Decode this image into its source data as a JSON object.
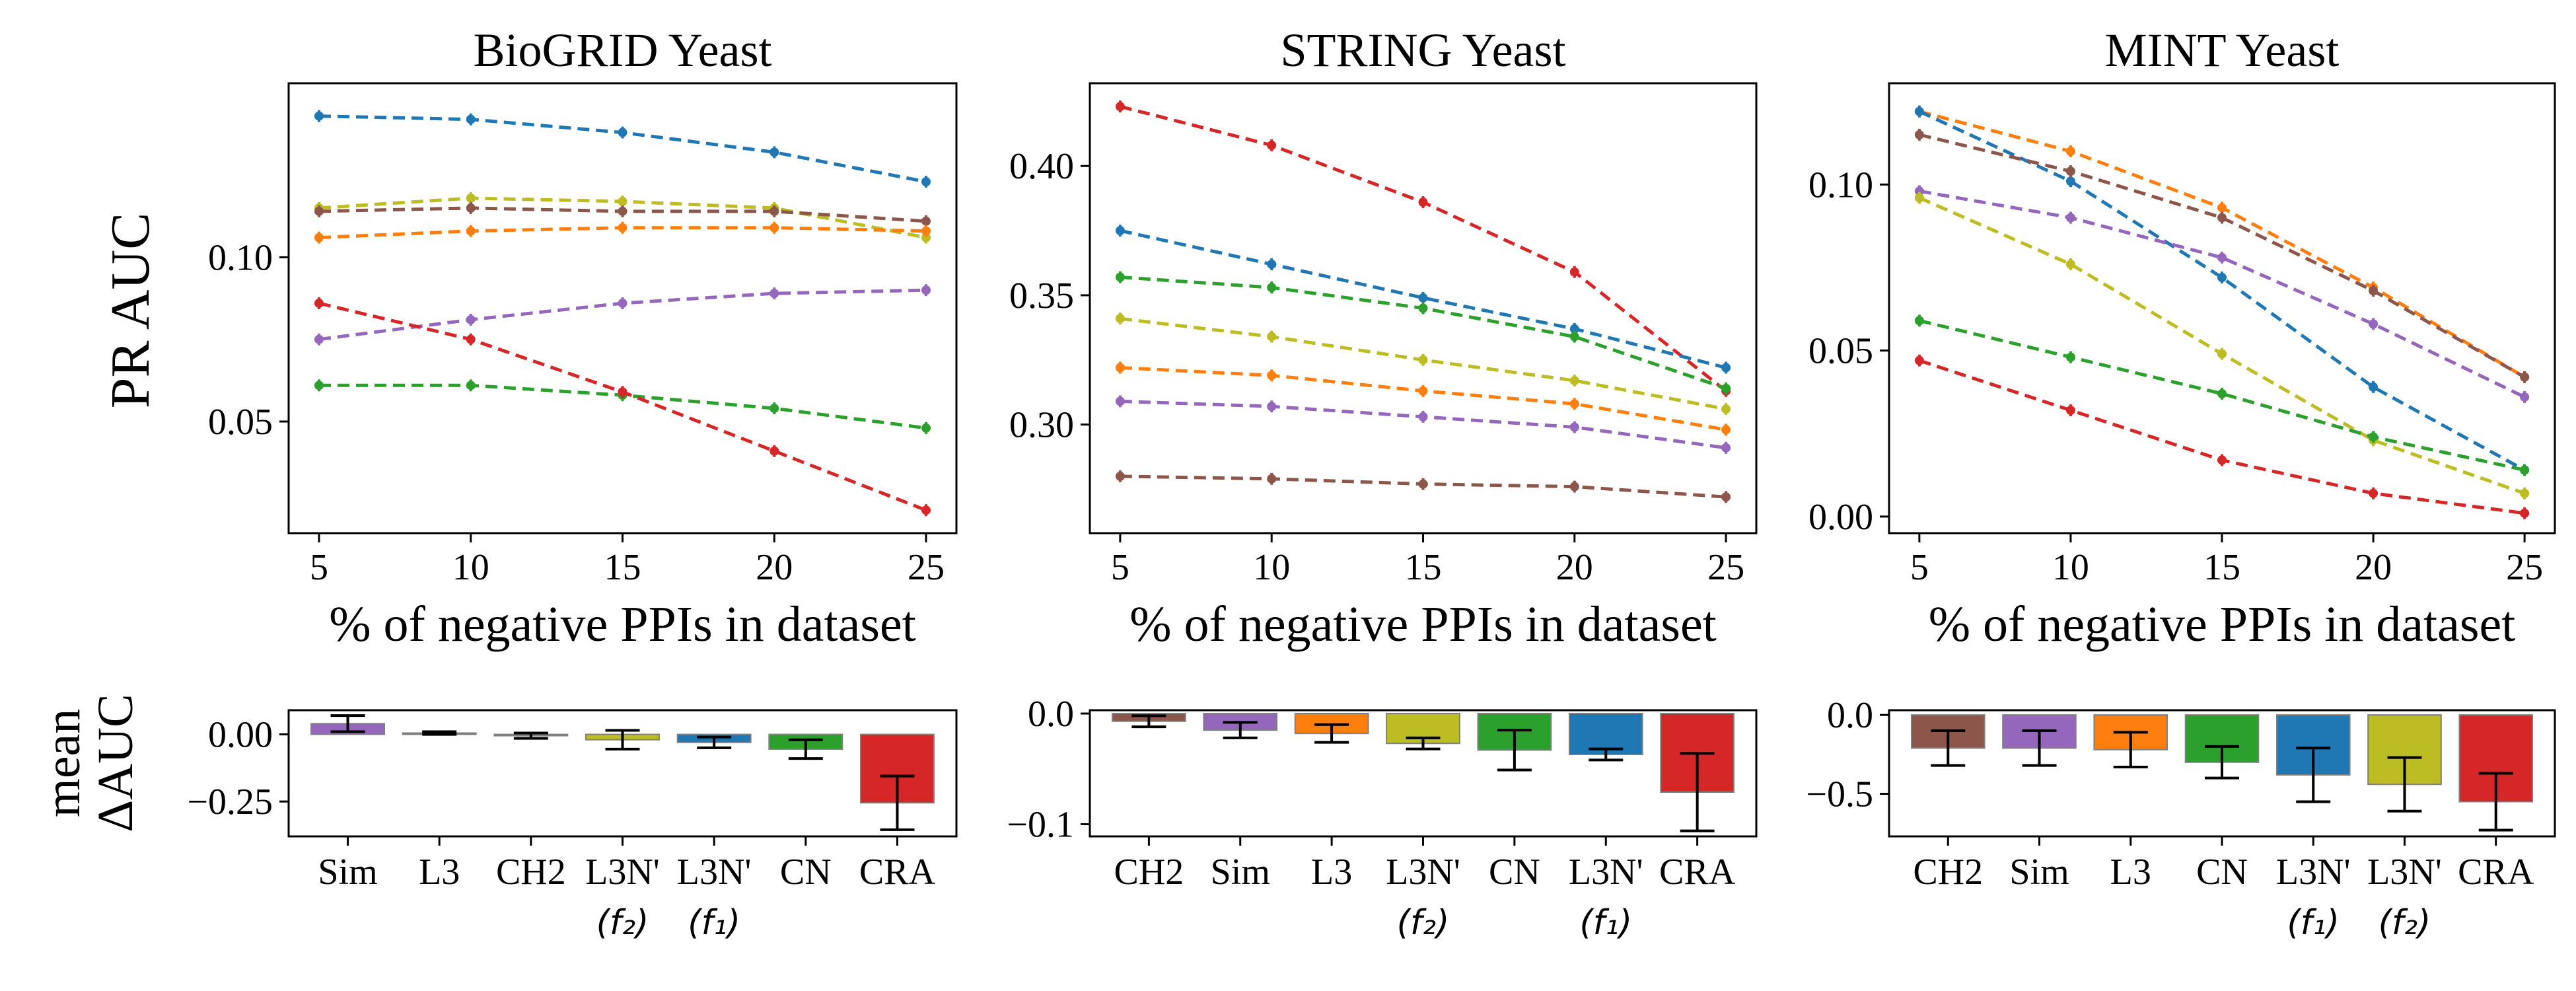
{
  "figure": {
    "ylabel_top": "PR AUC",
    "ylabel_bottom_line1": "mean",
    "ylabel_bottom_line2": "ΔAUC"
  },
  "chart_data": [
    {
      "type": "line",
      "title": "BioGRID Yeast",
      "xlabel": "% of negative PPIs in dataset",
      "ylabel": "PR AUC",
      "x": [
        5,
        10,
        15,
        20,
        25
      ],
      "xticks": [
        5,
        10,
        15,
        20,
        25
      ],
      "yticks": [
        0.05,
        0.1
      ],
      "ytick_labels": [
        "0.05",
        "0.10"
      ],
      "ylim": [
        0.016,
        0.153
      ],
      "series": [
        {
          "color": "#1f77b4",
          "values": [
            0.143,
            0.142,
            0.138,
            0.132,
            0.123
          ]
        },
        {
          "color": "#bcbd22",
          "values": [
            0.115,
            0.118,
            0.117,
            0.115,
            0.106
          ]
        },
        {
          "color": "#8c564b",
          "values": [
            0.114,
            0.115,
            0.114,
            0.114,
            0.111
          ]
        },
        {
          "color": "#ff7f0e",
          "values": [
            0.106,
            0.108,
            0.109,
            0.109,
            0.108
          ]
        },
        {
          "color": "#9467bd",
          "values": [
            0.075,
            0.081,
            0.086,
            0.089,
            0.09
          ]
        },
        {
          "color": "#2ca02c",
          "values": [
            0.061,
            0.061,
            0.058,
            0.054,
            0.048
          ]
        },
        {
          "color": "#d62728",
          "values": [
            0.086,
            0.075,
            0.059,
            0.041,
            0.023
          ]
        }
      ]
    },
    {
      "type": "line",
      "title": "STRING Yeast",
      "xlabel": "% of negative PPIs in dataset",
      "x": [
        5,
        10,
        15,
        20,
        25
      ],
      "xticks": [
        5,
        10,
        15,
        20,
        25
      ],
      "yticks": [
        0.3,
        0.35,
        0.4
      ],
      "ytick_labels": [
        "0.30",
        "0.35",
        "0.40"
      ],
      "ylim": [
        0.258,
        0.432
      ],
      "series": [
        {
          "color": "#d62728",
          "values": [
            0.423,
            0.408,
            0.386,
            0.359,
            0.313
          ]
        },
        {
          "color": "#1f77b4",
          "values": [
            0.375,
            0.362,
            0.349,
            0.337,
            0.322
          ]
        },
        {
          "color": "#2ca02c",
          "values": [
            0.357,
            0.353,
            0.345,
            0.334,
            0.314
          ]
        },
        {
          "color": "#bcbd22",
          "values": [
            0.341,
            0.334,
            0.325,
            0.317,
            0.306
          ]
        },
        {
          "color": "#ff7f0e",
          "values": [
            0.322,
            0.319,
            0.313,
            0.308,
            0.298
          ]
        },
        {
          "color": "#9467bd",
          "values": [
            0.309,
            0.307,
            0.303,
            0.299,
            0.291
          ]
        },
        {
          "color": "#8c564b",
          "values": [
            0.28,
            0.279,
            0.277,
            0.276,
            0.272
          ]
        }
      ]
    },
    {
      "type": "line",
      "title": "MINT Yeast",
      "xlabel": "% of negative PPIs in dataset",
      "x": [
        5,
        10,
        15,
        20,
        25
      ],
      "xticks": [
        5,
        10,
        15,
        20,
        25
      ],
      "yticks": [
        0.0,
        0.05,
        0.1
      ],
      "ytick_labels": [
        "0.00",
        "0.05",
        "0.10"
      ],
      "ylim": [
        -0.005,
        0.1305
      ],
      "series": [
        {
          "color": "#ff7f0e",
          "values": [
            0.122,
            0.11,
            0.093,
            0.069,
            0.042
          ]
        },
        {
          "color": "#1f77b4",
          "values": [
            0.122,
            0.101,
            0.072,
            0.039,
            0.014
          ]
        },
        {
          "color": "#8c564b",
          "values": [
            0.115,
            0.104,
            0.09,
            0.068,
            0.042
          ]
        },
        {
          "color": "#9467bd",
          "values": [
            0.098,
            0.09,
            0.078,
            0.058,
            0.036
          ]
        },
        {
          "color": "#bcbd22",
          "values": [
            0.096,
            0.076,
            0.049,
            0.023,
            0.007
          ]
        },
        {
          "color": "#2ca02c",
          "values": [
            0.059,
            0.048,
            0.037,
            0.024,
            0.014
          ]
        },
        {
          "color": "#d62728",
          "values": [
            0.047,
            0.032,
            0.017,
            0.007,
            0.001
          ]
        }
      ]
    },
    {
      "type": "bar",
      "categories": [
        "Sim",
        "L3",
        "CH2",
        "L3N'",
        "L3N'",
        "CN",
        "CRA"
      ],
      "subscripts": [
        "",
        "",
        "",
        "(f₂)",
        "(f₁)",
        "",
        ""
      ],
      "colors": [
        "#9467bd",
        "#1f77b4",
        "#8c564b",
        "#bcbd22",
        "#1f77b4",
        "#2ca02c",
        "#d62728"
      ],
      "values": [
        0.04,
        0.005,
        -0.005,
        -0.02,
        -0.03,
        -0.055,
        -0.255
      ],
      "errors": [
        0.03,
        0.005,
        0.01,
        0.035,
        0.02,
        0.035,
        0.1
      ],
      "yticks": [
        0.0,
        -0.25
      ],
      "ytick_labels": [
        "0.00",
        "−0.25"
      ],
      "ylim": [
        -0.38,
        0.09
      ]
    },
    {
      "type": "bar",
      "categories": [
        "CH2",
        "Sim",
        "L3",
        "L3N'",
        "CN",
        "L3N'",
        "CRA"
      ],
      "subscripts": [
        "",
        "",
        "",
        "(f₂)",
        "",
        "(f₁)",
        ""
      ],
      "colors": [
        "#8c564b",
        "#9467bd",
        "#ff7f0e",
        "#bcbd22",
        "#2ca02c",
        "#1f77b4",
        "#d62728"
      ],
      "values": [
        -0.007,
        -0.015,
        -0.018,
        -0.027,
        -0.033,
        -0.037,
        -0.071
      ],
      "errors": [
        0.005,
        0.007,
        0.008,
        0.005,
        0.018,
        0.005,
        0.035
      ],
      "yticks": [
        0.0,
        -0.1
      ],
      "ytick_labels": [
        "0.0",
        "−0.1"
      ],
      "ylim": [
        -0.111,
        0.003
      ]
    },
    {
      "type": "bar",
      "categories": [
        "CH2",
        "Sim",
        "L3",
        "CN",
        "L3N'",
        "L3N'",
        "CRA"
      ],
      "subscripts": [
        "",
        "",
        "",
        "",
        "(f₁)",
        "(f₂)",
        ""
      ],
      "colors": [
        "#8c564b",
        "#9467bd",
        "#ff7f0e",
        "#2ca02c",
        "#1f77b4",
        "#bcbd22",
        "#d62728"
      ],
      "values": [
        -0.21,
        -0.21,
        -0.22,
        -0.3,
        -0.38,
        -0.44,
        -0.55
      ],
      "errors": [
        0.11,
        0.11,
        0.11,
        0.1,
        0.17,
        0.17,
        0.18
      ],
      "yticks": [
        0.0,
        -0.5
      ],
      "ytick_labels": [
        "0.0",
        "−0.5"
      ],
      "ylim": [
        -0.77,
        0.03
      ]
    }
  ]
}
